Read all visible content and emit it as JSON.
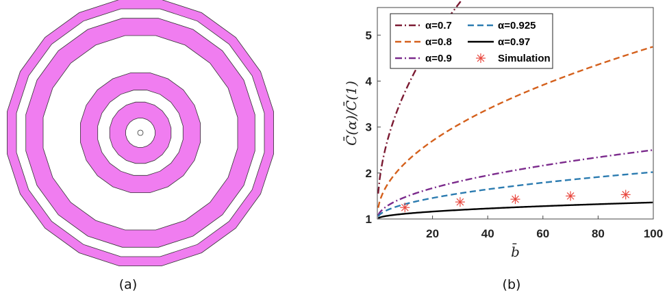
{
  "panels": {
    "a": {
      "caption": "(a)",
      "ring_color": "#f07df0",
      "stroke_color": "#333333",
      "polygon_sides": 20
    },
    "b": {
      "caption": "(b)"
    }
  },
  "chart_data": [
    {
      "type": "diagram",
      "description_caption": "(a)",
      "ring_bands_relative_radius": [
        [
          0.0,
          0.02
        ],
        [
          0.11,
          0.23
        ],
        [
          0.32,
          0.45
        ],
        [
          0.73,
          0.86
        ],
        [
          0.93,
          1.0
        ]
      ]
    },
    {
      "type": "line",
      "xlabel": "b̄",
      "ylabel": "C̄(α)/C̄(1)",
      "xlim": [
        0,
        100
      ],
      "ylim": [
        1,
        5.6
      ],
      "xticks": [
        20,
        40,
        60,
        80,
        100
      ],
      "yticks": [
        1,
        2,
        3,
        4,
        5
      ],
      "legend_position": "top-left",
      "grid": false,
      "series": [
        {
          "name": "α=0.7",
          "color": "#7b1a32",
          "dash": "dashdot",
          "a": 1.09,
          "b": 0.845
        },
        {
          "name": "α=0.8",
          "color": "#d4601c",
          "dash": "dashed",
          "a": 1.04,
          "b": 0.371
        },
        {
          "name": "α=0.9",
          "color": "#7b2a8c",
          "dash": "dashdot",
          "a": 1.0,
          "b": 0.15
        },
        {
          "name": "α=0.925",
          "color": "#2b7bb0",
          "dash": "dashed",
          "a": 1.0,
          "b": 0.102
        },
        {
          "name": "α=0.97",
          "color": "#000000",
          "dash": "solid",
          "a": 1.0,
          "b": 0.036
        }
      ],
      "simulation": {
        "name": "Simulation",
        "color": "#e8453c",
        "x": [
          10,
          30,
          50,
          70,
          90
        ],
        "y": [
          1.25,
          1.37,
          1.43,
          1.5,
          1.53
        ]
      }
    }
  ]
}
